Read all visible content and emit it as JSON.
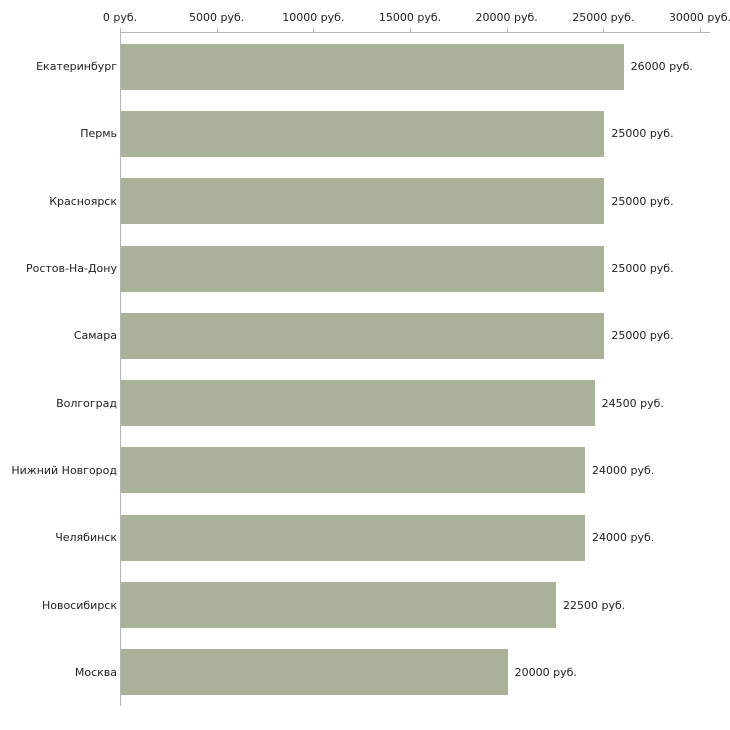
{
  "chart_data": {
    "type": "bar",
    "orientation": "horizontal",
    "title": "",
    "xlabel": "",
    "ylabel": "",
    "xlim": [
      0,
      30000
    ],
    "grid": false,
    "legend": "none",
    "bar_color": "#aab399",
    "axis_color": "#b5b5b5",
    "categories": [
      "Екатеринбург",
      "Пермь",
      "Красноярск",
      "Ростов-На-Дону",
      "Самара",
      "Волгоград",
      "Нижний Новгород",
      "Челябинск",
      "Новосибирск",
      "Москва"
    ],
    "values": [
      26000,
      25000,
      25000,
      25000,
      25000,
      24500,
      24000,
      24000,
      22500,
      20000
    ],
    "value_labels": [
      "26000 руб.",
      "25000 руб.",
      "25000 руб.",
      "25000 руб.",
      "25000 руб.",
      "24500 руб.",
      "24000 руб.",
      "24000 руб.",
      "22500 руб.",
      "20000 руб."
    ],
    "x_ticks": [
      0,
      5000,
      10000,
      15000,
      20000,
      25000,
      30000
    ],
    "x_tick_labels": [
      "0 руб.",
      "5000 руб.",
      "10000 руб.",
      "15000 руб.",
      "20000 руб.",
      "25000 руб.",
      "30000 руб."
    ]
  }
}
